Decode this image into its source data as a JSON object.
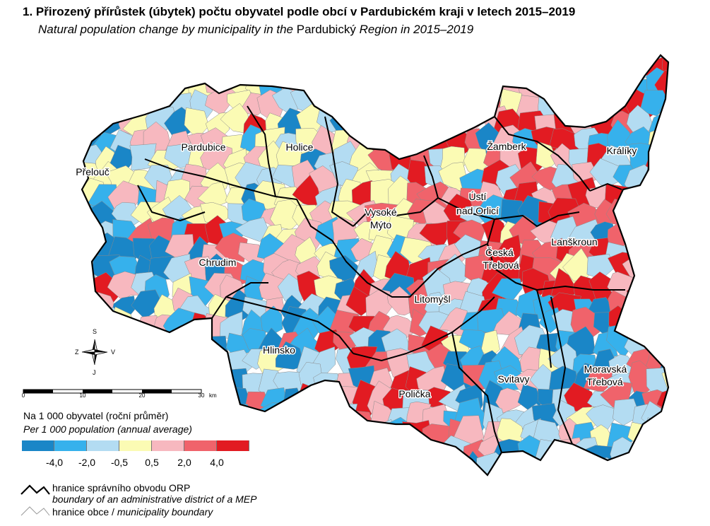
{
  "title": "1. Přirozený přírůstek (úbytek) počtu obyvatel podle obcí v Pardubickém kraji v letech 2015–2019",
  "subtitle": {
    "part1": "Natural population change by municipality in the ",
    "part2": "Pardubický",
    "part3": " Region in 2015–2019"
  },
  "towns": [
    "Pardubice",
    "Holice",
    "Přelouč",
    "Žamberk",
    "Králíky",
    "Vysoké",
    "Mýto",
    "Ústí",
    "nad Orlicí",
    "Česká",
    "Třebová",
    "Lanškroun",
    "Chrudim",
    "Litomyšl",
    "Hlinsko",
    "Svitavy",
    "Moravská",
    "Třebová",
    "Polička"
  ],
  "compass": {
    "north": "S",
    "south": "J",
    "west": "Z",
    "east": "V"
  },
  "scale": {
    "labels": [
      "0",
      "10",
      "20",
      "30"
    ],
    "unit": "km"
  },
  "legend": {
    "caption_cz": "Na 1 000 obyvatel (roční průměr)",
    "caption_en": "Per 1 000 population (annual average)",
    "colors": [
      "#1a86c7",
      "#36b1ec",
      "#b3dcf2",
      "#fbfbb4",
      "#f7b8bf",
      "#f0636b",
      "#e21b22"
    ],
    "breaks": [
      "-4,0",
      "-2,0",
      "-0,5",
      "0,5",
      "2,0",
      "4,0"
    ]
  },
  "boundary_legend": {
    "orp_cz": "hranice správního obvodu ORP",
    "orp_en": "boundary of an administrative district of a MEP",
    "obec_cz": "hranice obce / ",
    "obec_en": "municipality boundary"
  }
}
